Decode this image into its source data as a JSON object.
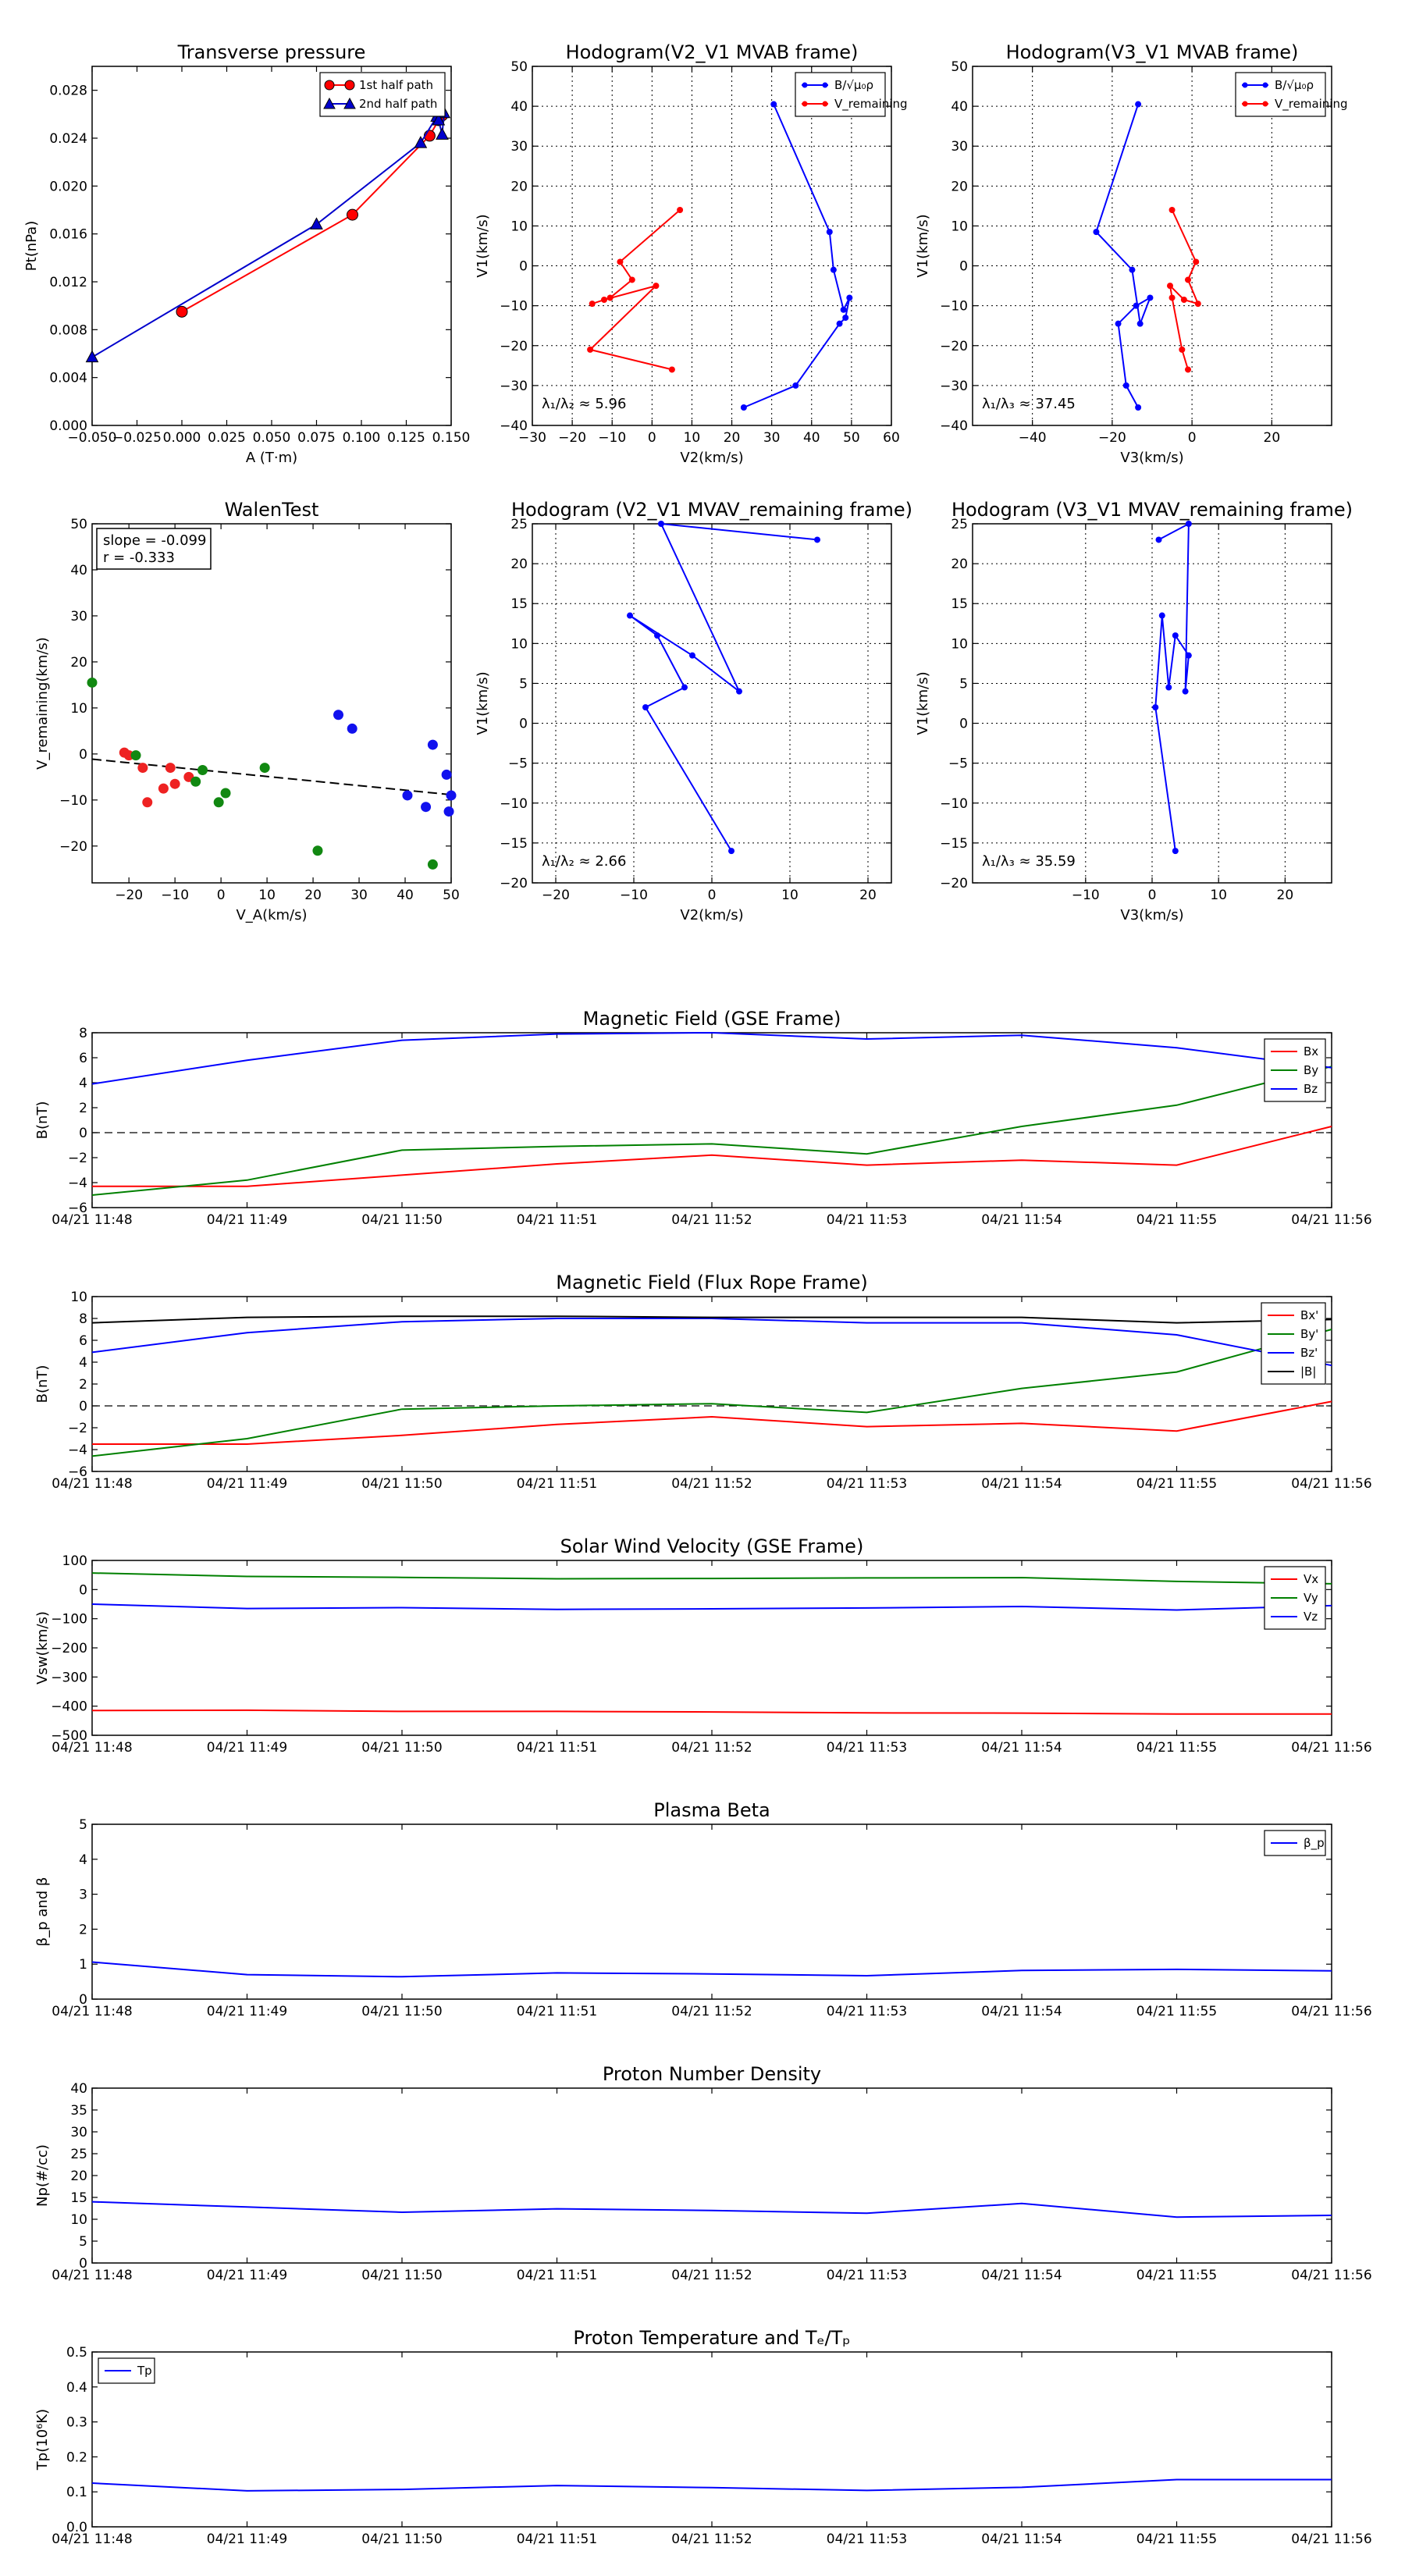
{
  "figure": {
    "background": "#ffffff"
  },
  "chart_data": [
    {
      "id": "tp",
      "type": "line",
      "title": "Transverse pressure",
      "xlabel": "A (T·m)",
      "ylabel": "Pt(nPa)",
      "xlim": [
        -0.05,
        0.15
      ],
      "ylim": [
        0,
        0.03
      ],
      "xticks": [
        "−0.050",
        "−0.025",
        "0.000",
        "0.025",
        "0.050",
        "0.075",
        "0.100",
        "0.125",
        "0.150"
      ],
      "yticks": [
        "0.000",
        "0.004",
        "0.008",
        "0.012",
        "0.016",
        "0.020",
        "0.024",
        "0.028"
      ],
      "grid": false,
      "legend_position": "top-right",
      "series": [
        {
          "name": "1st half path",
          "color": "#ff0000",
          "marker": "circle",
          "x": [
            0.145,
            0.143,
            0.138,
            0.095,
            0.0
          ],
          "y": [
            0.0259,
            0.0255,
            0.0242,
            0.0176,
            0.0095
          ]
        },
        {
          "name": "2nd half path",
          "color": "#0000cc",
          "marker": "triangle",
          "x": [
            -0.05,
            0.075,
            0.133,
            0.142,
            0.146,
            0.145,
            0.143
          ],
          "y": [
            0.0057,
            0.0168,
            0.0236,
            0.0258,
            0.0261,
            0.0243,
            0.0255
          ]
        }
      ]
    },
    {
      "id": "h1",
      "type": "line",
      "title": "Hodogram(V2_V1 MVAB frame)",
      "xlabel": "V2(km/s)",
      "ylabel": "V1(km/s)",
      "xlim": [
        -30,
        60
      ],
      "ylim": [
        -40,
        50
      ],
      "xticks": [
        "−30",
        "−20",
        "−10",
        "0",
        "10",
        "20",
        "30",
        "40",
        "50",
        "60"
      ],
      "yticks": [
        "−40",
        "−30",
        "−20",
        "−10",
        "0",
        "10",
        "20",
        "30",
        "40",
        "50"
      ],
      "grid": true,
      "legend_position": "top-right",
      "annotation": "λ₁/λ₂ ≈ 5.96",
      "series": [
        {
          "name": "B/√μ₀ρ",
          "color": "#0000ff",
          "x": [
            30.5,
            44.5,
            45.5,
            48.0,
            49.5,
            48.5,
            47.0,
            36.0,
            23.0
          ],
          "y": [
            40.5,
            8.5,
            -1.0,
            -11.0,
            -8.0,
            -13.0,
            -14.5,
            -30.0,
            -35.5
          ]
        },
        {
          "name": "V_remaining",
          "color": "#ff0000",
          "x": [
            7.0,
            -8.0,
            -5.0,
            -10.5,
            -15.0,
            -12.0,
            1.0,
            -15.5,
            5.0
          ],
          "y": [
            14.0,
            1.0,
            -3.5,
            -8.0,
            -9.5,
            -8.5,
            -5.0,
            -21.0,
            -26.0
          ]
        }
      ]
    },
    {
      "id": "h2",
      "type": "line",
      "title": "Hodogram(V3_V1 MVAB frame)",
      "xlabel": "V3(km/s)",
      "ylabel": "V1(km/s)",
      "xlim": [
        -55,
        35
      ],
      "ylim": [
        -40,
        50
      ],
      "xticks": [
        "−40",
        "−20",
        "0",
        "20"
      ],
      "xtick_values": [
        -40,
        -20,
        0,
        20
      ],
      "yticks": [
        "−40",
        "−30",
        "−20",
        "−10",
        "0",
        "10",
        "20",
        "30",
        "40",
        "50"
      ],
      "grid": true,
      "legend_position": "top-right",
      "annotation": "λ₁/λ₃ ≈ 37.45",
      "series": [
        {
          "name": "B/√μ₀ρ",
          "color": "#0000ff",
          "x": [
            -13.5,
            -24.0,
            -15.0,
            -13.0,
            -10.5,
            -14.0,
            -18.5,
            -16.5,
            -13.5
          ],
          "y": [
            40.5,
            8.5,
            -1.0,
            -14.5,
            -8.0,
            -10.0,
            -14.5,
            -30.0,
            -35.5
          ]
        },
        {
          "name": "V_remaining",
          "color": "#ff0000",
          "x": [
            -5.0,
            1.0,
            -1.0,
            1.5,
            -2.0,
            -5.5,
            -5.0,
            -2.5,
            -1.0
          ],
          "y": [
            14.0,
            1.0,
            -3.5,
            -9.5,
            -8.5,
            -5.0,
            -8.0,
            -21.0,
            -26.0
          ]
        }
      ]
    },
    {
      "id": "walen",
      "type": "scatter",
      "title": "WalenTest",
      "xlabel": "V_A(km/s)",
      "ylabel": "V_remaining(km/s)",
      "xlim": [
        -28,
        50
      ],
      "ylim": [
        -28,
        50
      ],
      "xticks": [
        "−20",
        "−10",
        "0",
        "10",
        "20",
        "30",
        "40",
        "50"
      ],
      "xtick_values": [
        -20,
        -10,
        0,
        10,
        20,
        30,
        40,
        50
      ],
      "yticks": [
        "−20",
        "−10",
        "0",
        "10",
        "20",
        "30",
        "40",
        "50"
      ],
      "ytick_values": [
        -20,
        -10,
        0,
        10,
        20,
        30,
        40,
        50
      ],
      "grid": false,
      "annotation": [
        "slope = -0.099",
        "r = -0.333"
      ],
      "fit": {
        "slope": -0.099,
        "intercept": -3.9,
        "color": "#000000",
        "style": "dashed"
      },
      "series": [
        {
          "name": "",
          "color": "#ee2222",
          "x": [
            -21.0,
            -20.0,
            -17.0,
            -16.0,
            -12.5,
            -11.0,
            -10.0,
            -7.0
          ],
          "y": [
            0.3,
            -0.3,
            -3.0,
            -10.5,
            -7.5,
            -3.0,
            -6.5,
            -5.0
          ]
        },
        {
          "name": "",
          "color": "#118811",
          "x": [
            -28.0,
            -18.5,
            -5.5,
            -4.0,
            -0.5,
            1.0,
            9.5,
            21.0,
            46.0
          ],
          "y": [
            15.5,
            -0.3,
            -6.0,
            -3.5,
            -10.5,
            -8.5,
            -3.0,
            -21.0,
            -24.0
          ]
        },
        {
          "name": "",
          "color": "#1111ee",
          "x": [
            25.5,
            28.5,
            40.5,
            44.5,
            46.0,
            49.0,
            49.5,
            50.0
          ],
          "y": [
            8.5,
            5.5,
            -9.0,
            -11.5,
            2.0,
            -4.5,
            -12.5,
            -9.0
          ]
        }
      ]
    },
    {
      "id": "h3",
      "type": "line",
      "title": "Hodogram (V2_V1 MVAV_remaining frame)",
      "xlabel": "V2(km/s)",
      "ylabel": "V1(km/s)",
      "xlim": [
        -23,
        23
      ],
      "ylim": [
        -20,
        25
      ],
      "xticks": [
        "−20",
        "−10",
        "0",
        "10",
        "20"
      ],
      "xtick_values": [
        -20,
        -10,
        0,
        10,
        20
      ],
      "yticks": [
        "−20",
        "−15",
        "−10",
        "−5",
        "0",
        "5",
        "10",
        "15",
        "20",
        "25"
      ],
      "grid": true,
      "annotation": "λ₁/λ₂ ≈ 2.66",
      "series": [
        {
          "name": "",
          "color": "#0000ff",
          "x": [
            13.5,
            -6.5,
            3.5,
            -2.5,
            -10.5,
            -7.0,
            -3.5,
            -8.5,
            2.5
          ],
          "y": [
            23.0,
            25.0,
            4.0,
            8.5,
            13.5,
            11.0,
            4.5,
            2.0,
            -16.0
          ]
        }
      ]
    },
    {
      "id": "h4",
      "type": "line",
      "title": "Hodogram (V3_V1 MVAV_remaining frame)",
      "xlabel": "V3(km/s)",
      "ylabel": "V1(km/s)",
      "xlim": [
        -27,
        27
      ],
      "ylim": [
        -20,
        25
      ],
      "xticks": [
        "−10",
        "0",
        "10",
        "20"
      ],
      "xtick_values": [
        -10,
        0,
        10,
        20
      ],
      "yticks": [
        "−20",
        "−15",
        "−10",
        "−5",
        "0",
        "5",
        "10",
        "15",
        "20",
        "25"
      ],
      "grid": true,
      "annotation": "λ₁/λ₃ ≈ 35.59",
      "series": [
        {
          "name": "",
          "color": "#0000ff",
          "x": [
            1.0,
            5.5,
            5.0,
            5.5,
            3.5,
            2.5,
            1.5,
            0.5,
            3.5
          ],
          "y": [
            23.0,
            25.0,
            4.0,
            8.5,
            11.0,
            4.5,
            13.5,
            2.0,
            -16.0
          ]
        }
      ]
    },
    {
      "id": "mag_gse",
      "type": "line",
      "title": "Magnetic Field (GSE Frame)",
      "ylabel": "B(nT)",
      "ylim": [
        -6,
        8
      ],
      "yticks": [
        "−6",
        "−4",
        "−2",
        "0",
        "2",
        "4",
        "6",
        "8"
      ],
      "ytick_values": [
        -6,
        -4,
        -2,
        0,
        2,
        4,
        6,
        8
      ],
      "x": [
        "04/21 11:48",
        "04/21 11:49",
        "04/21 11:50",
        "04/21 11:51",
        "04/21 11:52",
        "04/21 11:53",
        "04/21 11:54",
        "04/21 11:55",
        "04/21 11:56"
      ],
      "zero_line": true,
      "legend_position": "top-right",
      "series": [
        {
          "name": "Bx",
          "color": "#ff0000",
          "values": [
            -4.3,
            -4.3,
            -3.4,
            -2.5,
            -1.8,
            -2.6,
            -2.2,
            -2.6,
            0.5
          ]
        },
        {
          "name": "By",
          "color": "#008000",
          "values": [
            -5.0,
            -3.8,
            -1.4,
            -1.1,
            -0.9,
            -1.7,
            0.5,
            2.2,
            5.3
          ]
        },
        {
          "name": "Bz",
          "color": "#0000ff",
          "values": [
            3.9,
            5.8,
            7.4,
            7.9,
            8.0,
            7.5,
            7.8,
            6.8,
            5.2
          ]
        }
      ]
    },
    {
      "id": "mag_fr",
      "type": "line",
      "title": "Magnetic Field (Flux Rope Frame)",
      "ylabel": "B(nT)",
      "ylim": [
        -6,
        10
      ],
      "yticks": [
        "−6",
        "−4",
        "−2",
        "0",
        "2",
        "4",
        "6",
        "8",
        "10"
      ],
      "ytick_values": [
        -6,
        -4,
        -2,
        0,
        2,
        4,
        6,
        8,
        10
      ],
      "x": [
        "04/21 11:48",
        "04/21 11:49",
        "04/21 11:50",
        "04/21 11:51",
        "04/21 11:52",
        "04/21 11:53",
        "04/21 11:54",
        "04/21 11:55",
        "04/21 11:56"
      ],
      "zero_line": true,
      "legend_position": "top-right",
      "series": [
        {
          "name": "Bx'",
          "color": "#ff0000",
          "values": [
            -3.5,
            -3.5,
            -2.7,
            -1.7,
            -1.0,
            -1.9,
            -1.6,
            -2.3,
            0.4
          ]
        },
        {
          "name": "By'",
          "color": "#008000",
          "values": [
            -4.6,
            -3.0,
            -0.3,
            0.0,
            0.2,
            -0.6,
            1.6,
            3.1,
            7.0
          ]
        },
        {
          "name": "Bz'",
          "color": "#0000ff",
          "values": [
            4.9,
            6.7,
            7.7,
            8.0,
            8.0,
            7.6,
            7.6,
            6.5,
            3.7
          ]
        },
        {
          "name": "|B|",
          "color": "#000000",
          "values": [
            7.6,
            8.1,
            8.2,
            8.2,
            8.1,
            8.1,
            8.1,
            7.6,
            7.9
          ]
        }
      ]
    },
    {
      "id": "vsw",
      "type": "line",
      "title": "Solar Wind Velocity (GSE Frame)",
      "ylabel": "Vsw(km/s)",
      "ylim": [
        -500,
        100
      ],
      "yticks": [
        "−500",
        "−400",
        "−300",
        "−200",
        "−100",
        "0",
        "100"
      ],
      "ytick_values": [
        -500,
        -400,
        -300,
        -200,
        -100,
        0,
        100
      ],
      "x": [
        "04/21 11:48",
        "04/21 11:49",
        "04/21 11:50",
        "04/21 11:51",
        "04/21 11:52",
        "04/21 11:53",
        "04/21 11:54",
        "04/21 11:55",
        "04/21 11:56"
      ],
      "legend_position": "top-right",
      "series": [
        {
          "name": "Vx",
          "color": "#ff0000",
          "values": [
            -415,
            -414,
            -418,
            -418,
            -420,
            -423,
            -424,
            -427,
            -427
          ]
        },
        {
          "name": "Vy",
          "color": "#008000",
          "values": [
            57,
            45,
            42,
            37,
            38,
            40,
            41,
            28,
            20
          ]
        },
        {
          "name": "Vz",
          "color": "#0000ff",
          "values": [
            -50,
            -65,
            -62,
            -68,
            -66,
            -63,
            -58,
            -70,
            -55
          ]
        }
      ]
    },
    {
      "id": "beta",
      "type": "line",
      "title": "Plasma Beta",
      "ylabel": "β_p and β",
      "ylim": [
        0,
        5
      ],
      "yticks": [
        "0",
        "1",
        "2",
        "3",
        "4",
        "5"
      ],
      "ytick_values": [
        0,
        1,
        2,
        3,
        4,
        5
      ],
      "x": [
        "04/21 11:48",
        "04/21 11:49",
        "04/21 11:50",
        "04/21 11:51",
        "04/21 11:52",
        "04/21 11:53",
        "04/21 11:54",
        "04/21 11:55",
        "04/21 11:56"
      ],
      "legend_position": "top-right",
      "series": [
        {
          "name": "β_p",
          "color": "#0000ff",
          "values": [
            1.06,
            0.7,
            0.64,
            0.75,
            0.72,
            0.67,
            0.82,
            0.85,
            0.81
          ]
        }
      ]
    },
    {
      "id": "np",
      "type": "line",
      "title": "Proton Number Density",
      "ylabel": "Np(#/cc)",
      "ylim": [
        0,
        40
      ],
      "yticks": [
        "0",
        "5",
        "10",
        "15",
        "20",
        "25",
        "30",
        "35",
        "40"
      ],
      "ytick_values": [
        0,
        5,
        10,
        15,
        20,
        25,
        30,
        35,
        40
      ],
      "x": [
        "04/21 11:48",
        "04/21 11:49",
        "04/21 11:50",
        "04/21 11:51",
        "04/21 11:52",
        "04/21 11:53",
        "04/21 11:54",
        "04/21 11:55",
        "04/21 11:56"
      ],
      "series": [
        {
          "name": "",
          "color": "#0000ff",
          "values": [
            14.0,
            12.8,
            11.6,
            12.4,
            12.0,
            11.4,
            13.6,
            10.5,
            10.9
          ]
        }
      ]
    },
    {
      "id": "tpt",
      "type": "line",
      "title": "Proton Temperature and Tₑ/Tₚ",
      "ylabel": "Tp(10⁶K)",
      "ylim": [
        0,
        0.5
      ],
      "yticks": [
        "0.0",
        "0.1",
        "0.2",
        "0.3",
        "0.4",
        "0.5"
      ],
      "ytick_values": [
        0,
        0.1,
        0.2,
        0.3,
        0.4,
        0.5
      ],
      "x": [
        "04/21 11:48",
        "04/21 11:49",
        "04/21 11:50",
        "04/21 11:51",
        "04/21 11:52",
        "04/21 11:53",
        "04/21 11:54",
        "04/21 11:55",
        "04/21 11:56"
      ],
      "legend_position": "top-left",
      "series": [
        {
          "name": "Tp",
          "color": "#0000ff",
          "values": [
            0.125,
            0.103,
            0.107,
            0.118,
            0.112,
            0.104,
            0.113,
            0.135,
            0.135
          ]
        }
      ]
    }
  ]
}
